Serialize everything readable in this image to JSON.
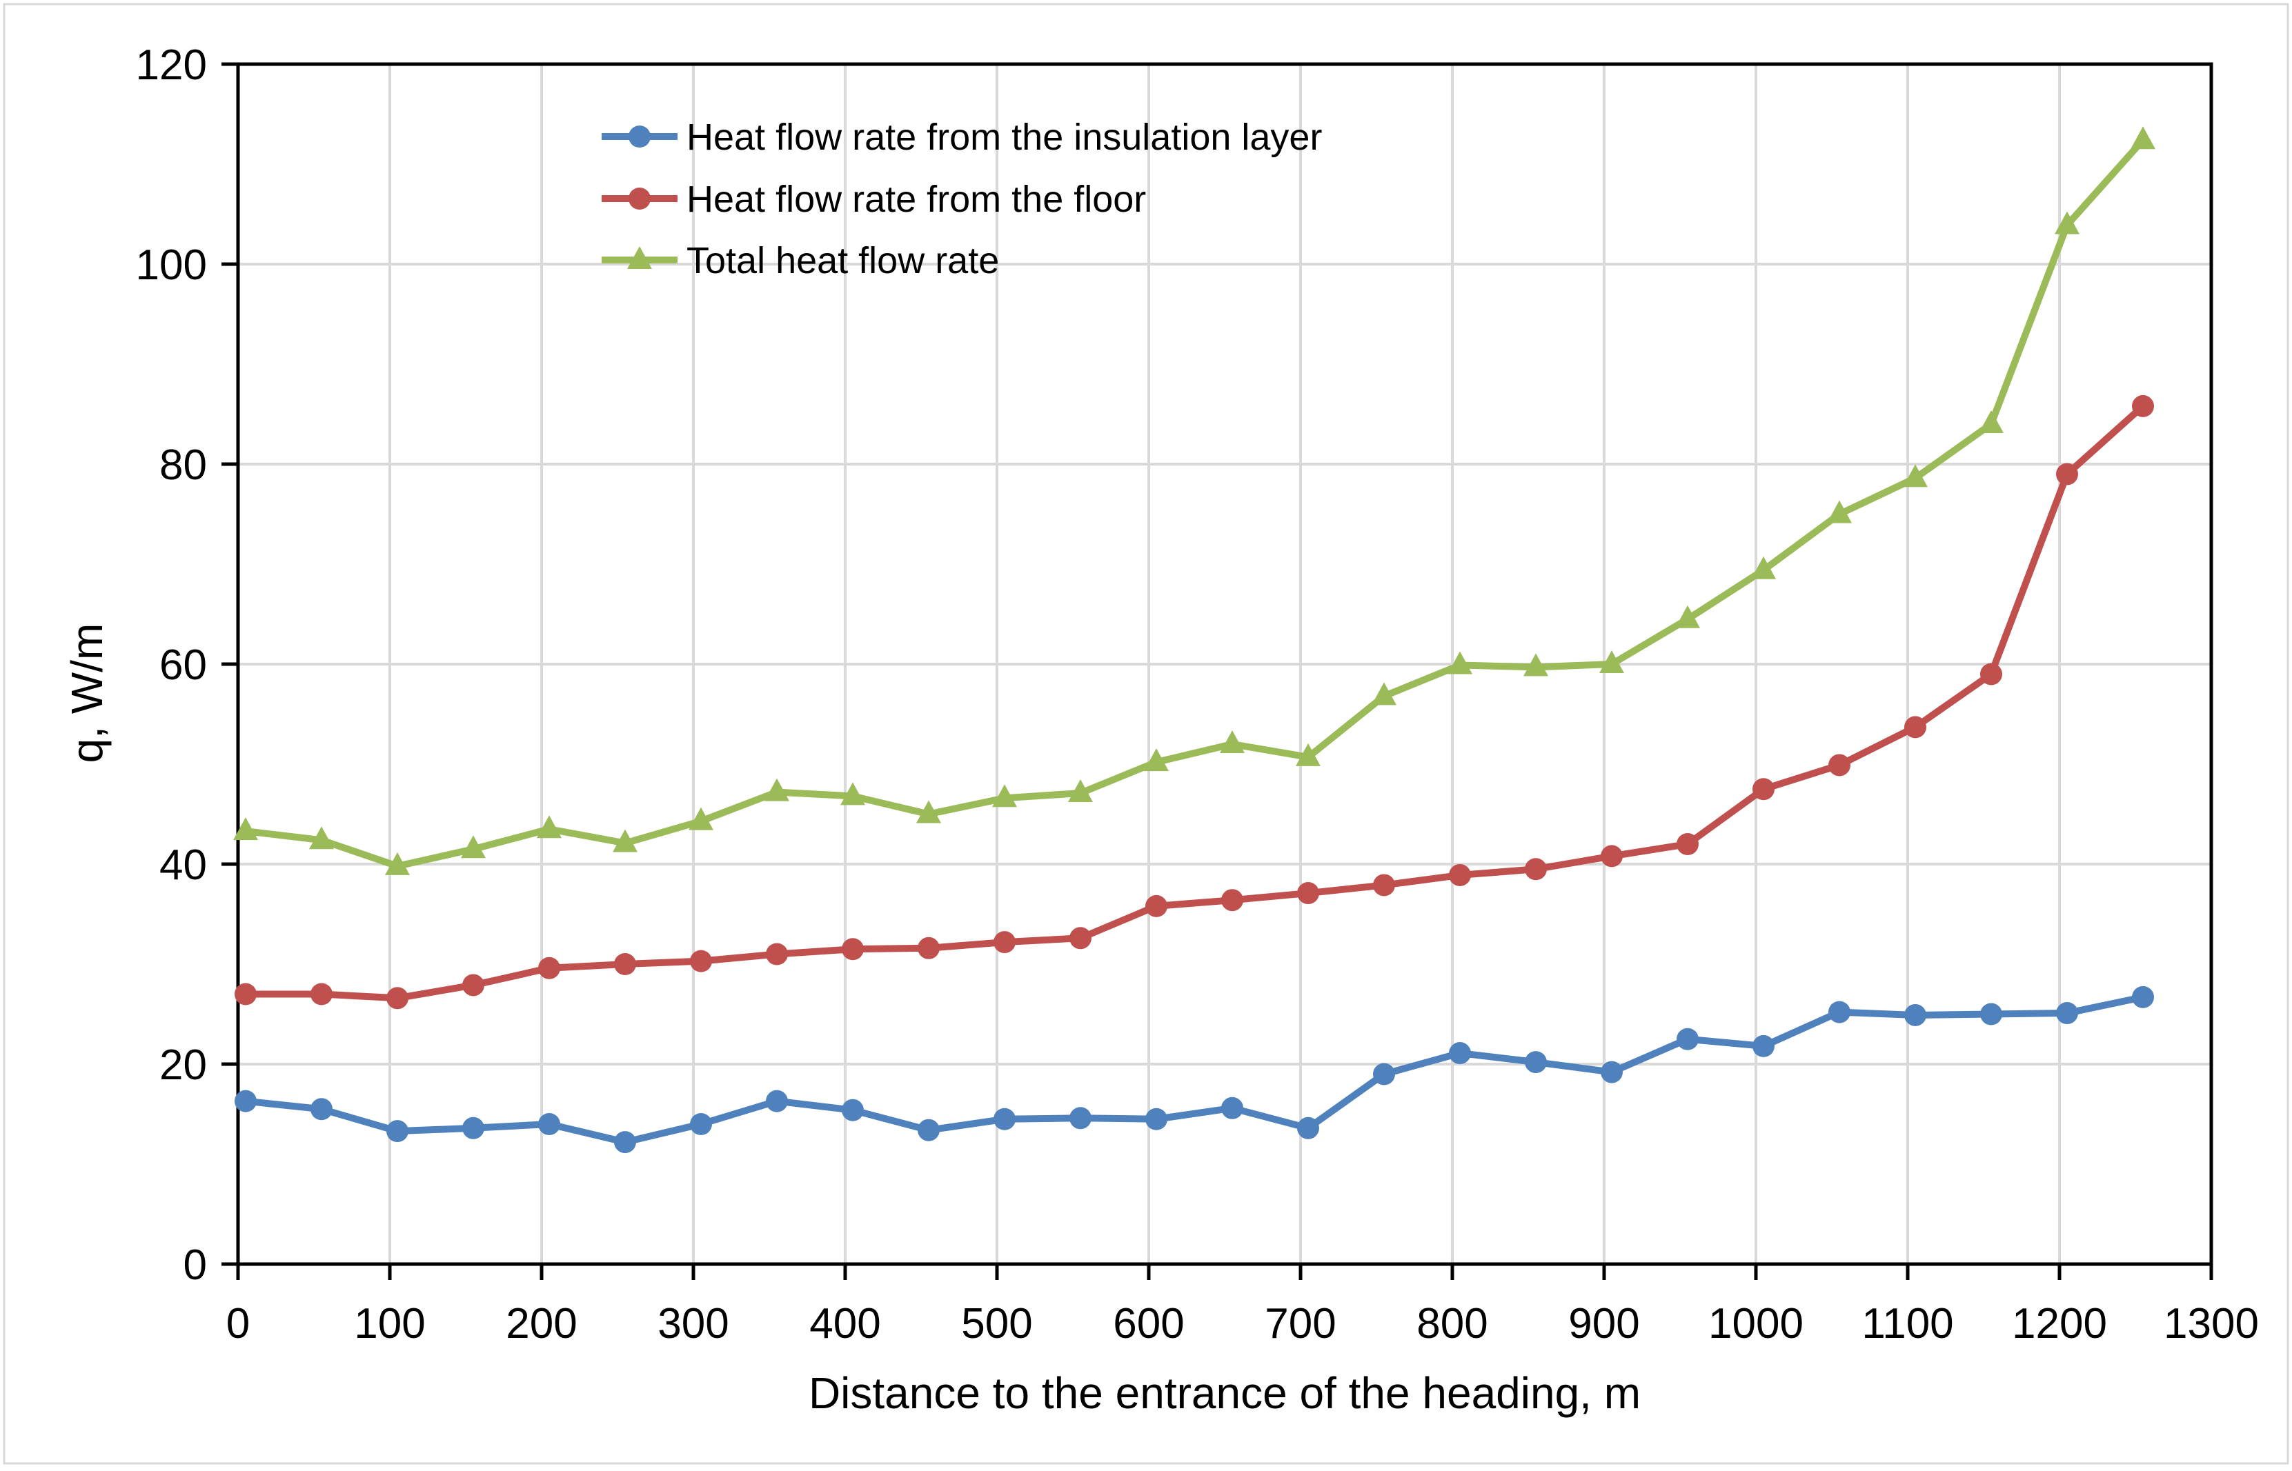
{
  "figure": {
    "background": "#ffffff",
    "outer_border_color": "#d9d9d9",
    "plot_border_color": "#000000",
    "gridline_color": "#d9d9d9",
    "tick_color": "#000000",
    "text_color": "#000000"
  },
  "chart_data": {
    "type": "line",
    "title": "",
    "xlabel": "Distance to the entrance of the heading, m",
    "ylabel": "q, W/m",
    "xlim": [
      0,
      1300
    ],
    "ylim": [
      0,
      120
    ],
    "x_ticks": [
      0,
      100,
      200,
      300,
      400,
      500,
      600,
      700,
      800,
      900,
      1000,
      1100,
      1200,
      1300
    ],
    "y_ticks": [
      0,
      20,
      40,
      60,
      80,
      100,
      120
    ],
    "grid": true,
    "legend_position": "top-left-inside",
    "x": [
      5,
      55,
      105,
      155,
      205,
      255,
      305,
      355,
      405,
      455,
      505,
      555,
      605,
      655,
      705,
      755,
      805,
      855,
      905,
      955,
      1005,
      1055,
      1105,
      1155,
      1205,
      1255
    ],
    "series": [
      {
        "name": "Heat flow rate from the insulation layer",
        "color": "#4F81BD",
        "marker": "circle",
        "values": [
          16.3,
          15.5,
          13.3,
          13.6,
          14.0,
          12.2,
          14.0,
          16.3,
          15.4,
          13.4,
          14.5,
          14.6,
          14.5,
          15.6,
          13.6,
          19.0,
          21.1,
          20.2,
          19.2,
          22.5,
          21.8,
          25.2,
          24.9,
          25.0,
          25.1,
          26.7
        ]
      },
      {
        "name": "Heat flow rate from the floor",
        "color": "#C0504D",
        "marker": "circle",
        "values": [
          27.0,
          27.0,
          26.6,
          27.9,
          29.6,
          30.0,
          30.3,
          31.0,
          31.5,
          31.6,
          32.2,
          32.6,
          35.8,
          36.4,
          37.1,
          37.9,
          38.9,
          39.5,
          40.8,
          42.0,
          47.5,
          49.9,
          53.7,
          59.0,
          79.0,
          85.8
        ]
      },
      {
        "name": "Total heat flow rate",
        "color": "#9BBB59",
        "marker": "triangle",
        "values": [
          43.3,
          42.4,
          39.8,
          41.5,
          43.5,
          42.1,
          44.3,
          47.2,
          46.8,
          45.0,
          46.6,
          47.1,
          50.2,
          52.0,
          50.7,
          56.8,
          59.9,
          59.7,
          60.0,
          64.5,
          69.4,
          75.0,
          78.6,
          84.0,
          103.9,
          112.4
        ]
      }
    ]
  }
}
